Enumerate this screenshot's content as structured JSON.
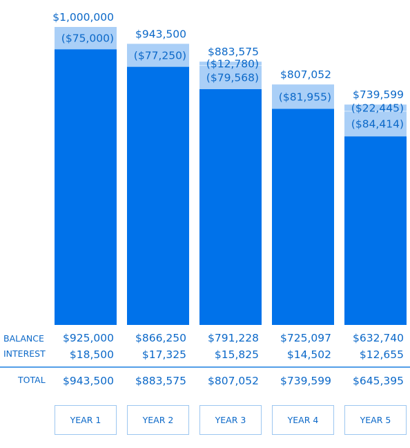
{
  "chart_data": {
    "type": "bar",
    "categories": [
      "YEAR 1",
      "YEAR 2",
      "YEAR 3",
      "YEAR 4",
      "YEAR 5"
    ],
    "start_values": [
      1000000,
      943500,
      883575,
      807052,
      739599
    ],
    "start_labels": [
      "$1,000,000",
      "$943,500",
      "$883,575",
      "$807,052",
      "$739,599"
    ],
    "balance_values": [
      925000,
      866250,
      791228,
      725097,
      632740
    ],
    "withdrawals": [
      [
        {
          "value": -75000,
          "label": "($75,000)"
        }
      ],
      [
        {
          "value": -77250,
          "label": "($77,250)"
        }
      ],
      [
        {
          "value": -12780,
          "label": "($12,780)"
        },
        {
          "value": -79568,
          "label": "($79,568)"
        }
      ],
      [
        {
          "value": -81955,
          "label": "($81,955)"
        }
      ],
      [
        {
          "value": -22445,
          "label": "($22,445)"
        },
        {
          "value": -84414,
          "label": "($84,414)"
        }
      ]
    ],
    "table": {
      "row_labels": {
        "balance": "BALANCE",
        "interest": "INTEREST",
        "total": "TOTAL"
      },
      "balance": [
        "$925,000",
        "$866,250",
        "$791,228",
        "$725,097",
        "$632,740"
      ],
      "interest": [
        "$18,500",
        "$17,325",
        "$15,825",
        "$14,502",
        "$12,655"
      ],
      "total": [
        "$943,500",
        "$883,575",
        "$807,052",
        "$739,599",
        "$645,395"
      ]
    },
    "ylim": [
      0,
      1000000
    ],
    "colors": {
      "balance_bar": "#0072ea",
      "withdrawal_bar": "#aacff7",
      "text": "#0b68c8",
      "year_box_border": "#9cc6f0",
      "divider": "#1a7fe0"
    }
  }
}
